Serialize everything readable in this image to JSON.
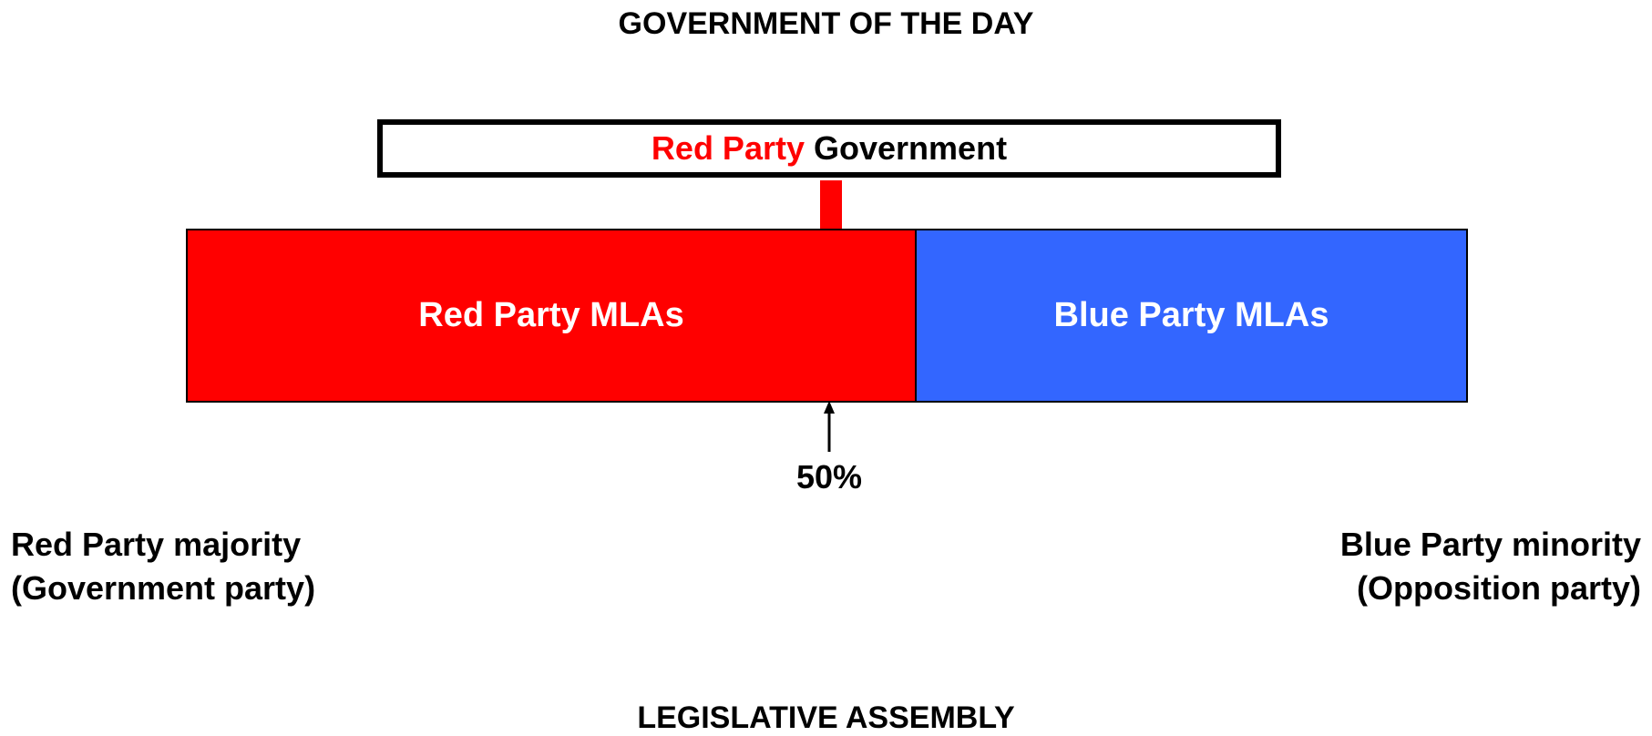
{
  "title_top": "GOVERNMENT OF THE DAY",
  "government_box": {
    "party": "Red Party",
    "suffix": "Government",
    "party_color": "#ff0000"
  },
  "bars": {
    "red": {
      "label": "Red Party MLAs",
      "color": "#ff0000"
    },
    "blue": {
      "label": "Blue Party MLAs",
      "color": "#3366ff"
    }
  },
  "threshold": {
    "label": "50%"
  },
  "left_note": {
    "line1": "Red Party majority",
    "line2": "(Government party)"
  },
  "right_note": {
    "line1": "Blue Party minority",
    "line2": "(Opposition party)"
  },
  "title_bottom": "LEGISLATIVE ASSEMBLY"
}
